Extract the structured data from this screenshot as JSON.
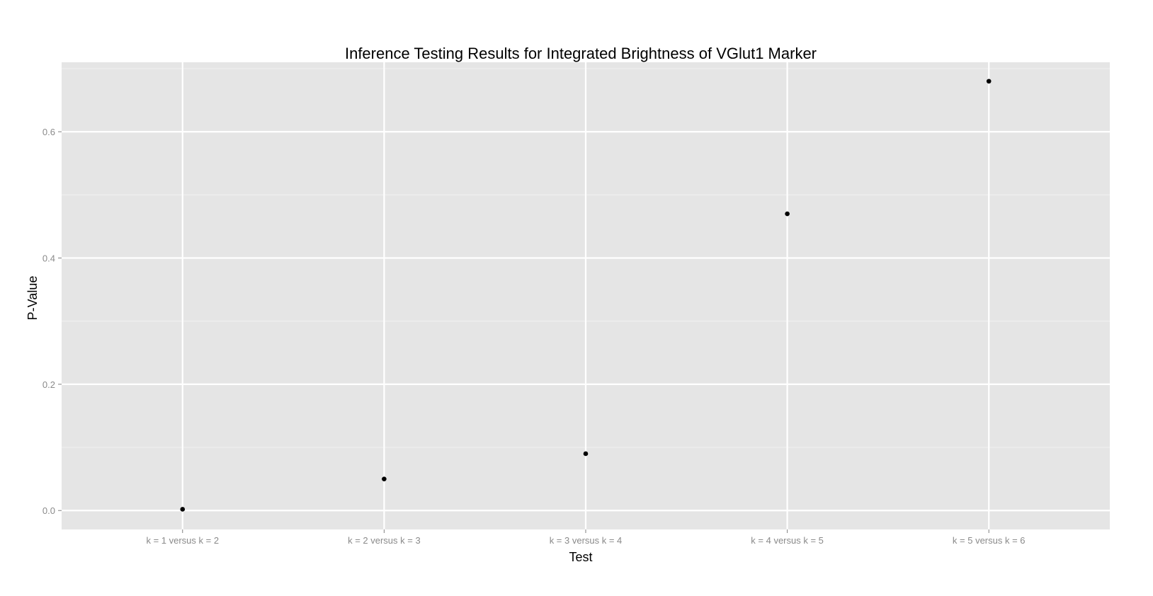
{
  "chart_data": {
    "type": "scatter",
    "title": "Inference Testing Results for Integrated Brightness of VGlut1 Marker",
    "xlabel": "Test",
    "ylabel": "P-Value",
    "categories": [
      "k = 1 versus k = 2",
      "k = 2 versus k = 3",
      "k = 3 versus k = 4",
      "k = 4 versus k = 5",
      "k = 5 versus k = 6"
    ],
    "values": [
      0.002,
      0.05,
      0.09,
      0.47,
      0.68
    ],
    "yticks": [
      0.0,
      0.2,
      0.4,
      0.6
    ],
    "ytick_labels": [
      "0.0",
      "0.2",
      "0.4",
      "0.6"
    ],
    "ylim": [
      -0.03,
      0.71
    ],
    "grid": true,
    "colors": {
      "panel_background": "#e5e5e5",
      "grid_major": "#ffffff",
      "grid_minor": "#f0f0f0",
      "point": "#000000",
      "tick_text": "#8a8a8a"
    }
  }
}
